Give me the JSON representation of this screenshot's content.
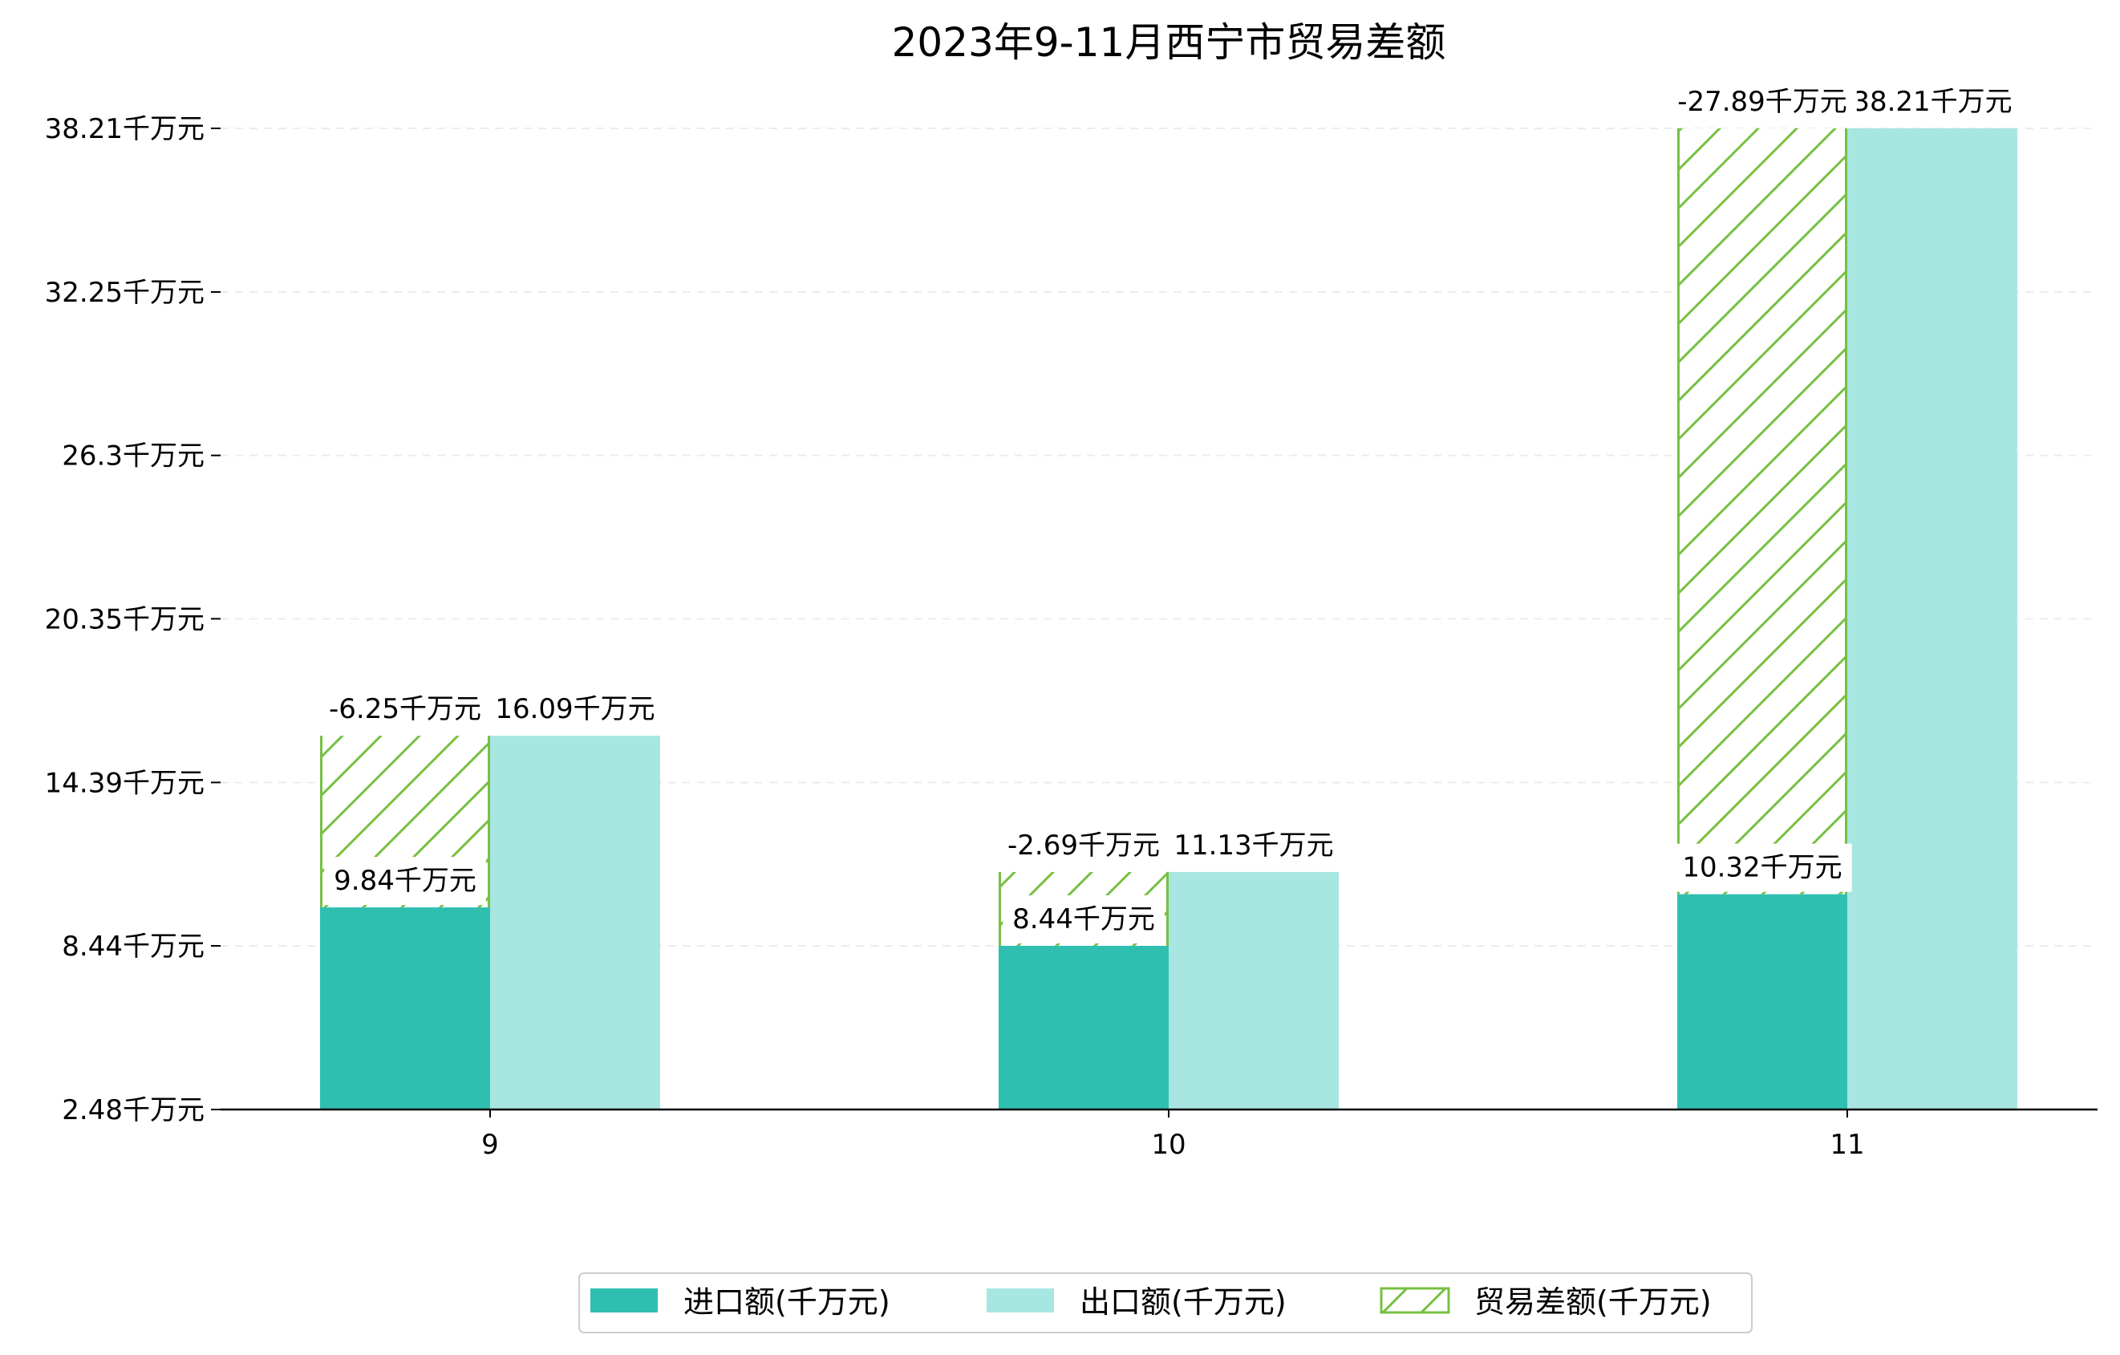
{
  "chart_data": {
    "type": "bar",
    "title": "2023年9-11月西宁市贸易差额",
    "xlabel": "",
    "ylabel": "",
    "categories": [
      "9",
      "10",
      "11"
    ],
    "yticks": [
      "2.48千万元",
      "8.44千万元",
      "14.39千万元",
      "20.35千万元",
      "26.3千万元",
      "32.25千万元",
      "38.21千万元"
    ],
    "ytick_values": [
      2.48,
      8.44,
      14.39,
      20.35,
      26.3,
      32.25,
      38.21
    ],
    "ylim": [
      2.48,
      38.21
    ],
    "grid": true,
    "legend_position": "bottom-center",
    "series": [
      {
        "name": "进口额(千万元)",
        "values": [
          9.84,
          8.44,
          10.32
        ],
        "labels": [
          "9.84千万元",
          "8.44千万元",
          "10.32千万元"
        ],
        "color": "#2fbfb1",
        "style": "solid"
      },
      {
        "name": "出口额(千万元)",
        "values": [
          16.09,
          11.13,
          38.21
        ],
        "labels": [
          "16.09千万元",
          "11.13千万元",
          "38.21千万元"
        ],
        "color": "#a8e6e1",
        "style": "solid"
      },
      {
        "name": "贸易差额(千万元)",
        "values": [
          -6.25,
          -2.69,
          -27.89
        ],
        "labels": [
          "-6.25千万元",
          "-2.69千万元",
          "-27.89千万元"
        ],
        "color": "#77c043",
        "style": "hatched"
      }
    ]
  }
}
